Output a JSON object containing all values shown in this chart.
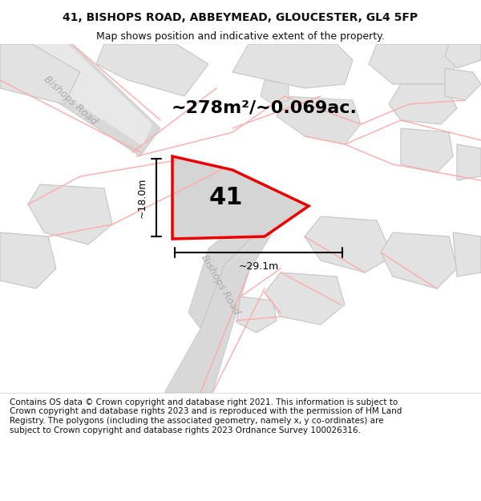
{
  "title_line1": "41, BISHOPS ROAD, ABBEYMEAD, GLOUCESTER, GL4 5FP",
  "title_line2": "Map shows position and indicative extent of the property.",
  "area_text": "~278m²/~0.069ac.",
  "label_41": "41",
  "dim_height": "~18.0m",
  "dim_width": "~29.1m",
  "road_label_top": "Bishops Road",
  "road_label_bottom": "Bishops Road",
  "footer_text": "Contains OS data © Crown copyright and database right 2021. This information is subject to Crown copyright and database rights 2023 and is reproduced with the permission of HM Land Registry. The polygons (including the associated geometry, namely x, y co-ordinates) are subject to Crown copyright and database rights 2023 Ordnance Survey 100026316.",
  "bg_color": "#f5f5f5",
  "map_bg": "#f0f0f0",
  "road_color": "#d4d4d4",
  "road_border": "#c8c8c8",
  "building_color": "#e0e0e0",
  "building_border": "#cccccc",
  "highlight_color": "#d8d8d8",
  "red_color": "#ff0000",
  "dim_color": "#333333",
  "title_color": "#111111",
  "footer_color": "#111111",
  "road_text_color": "#aaaaaa"
}
